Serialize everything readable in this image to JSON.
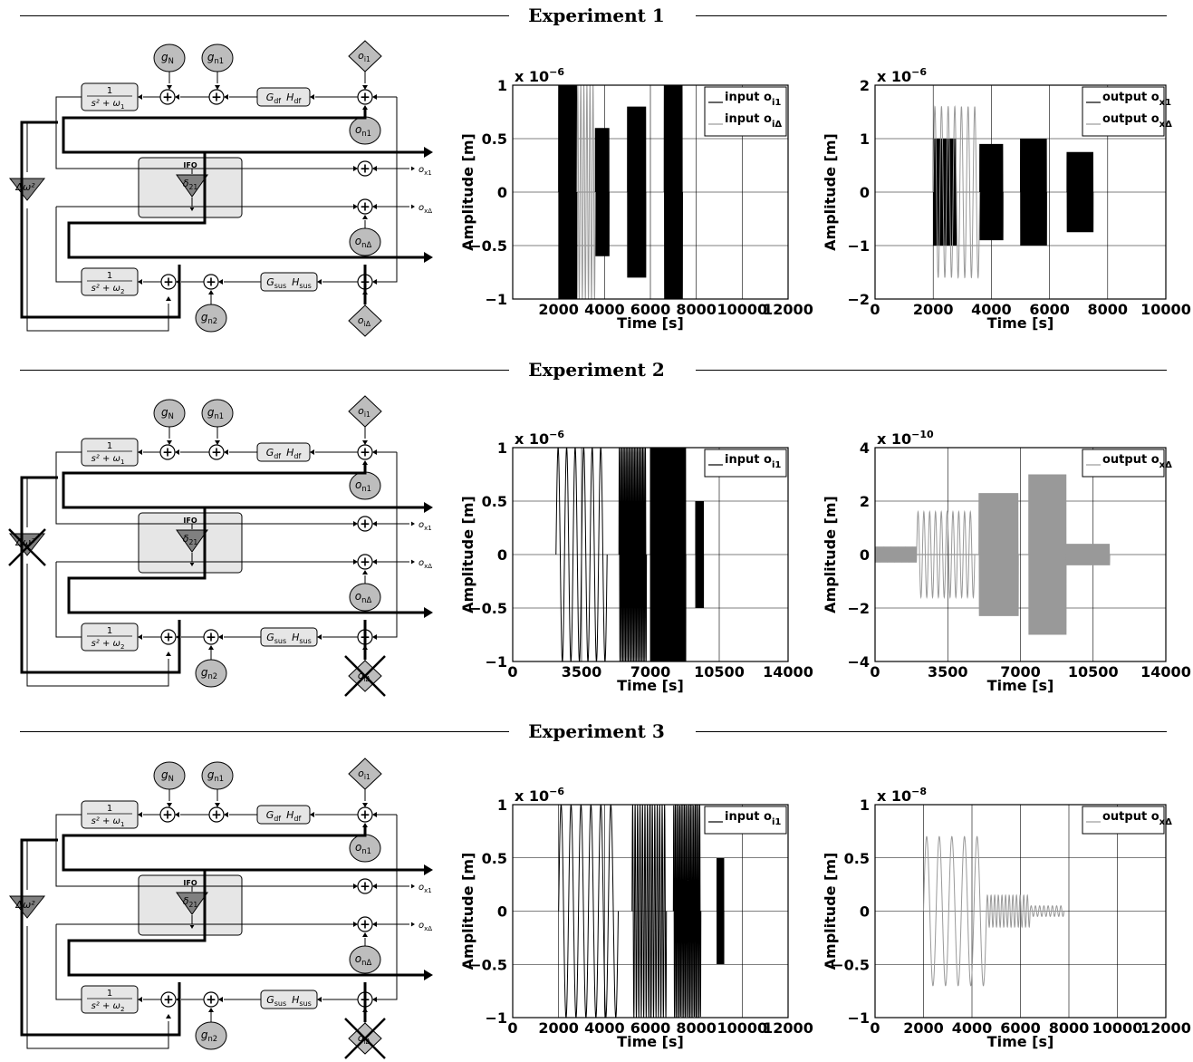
{
  "experiments": [
    {
      "title": "Experiment 1",
      "diagram": {
        "removed_delta_omega": false,
        "removed_oi_delta": false
      },
      "charts": [
        {
          "type": "line",
          "exponent_prefix": "x 10",
          "exponent": "−6",
          "ylabel": "Amplitude  [m]",
          "xlabel": "Time  [s]",
          "xlim": [
            0,
            12000
          ],
          "ylim": [
            -1,
            1
          ],
          "xticks": [
            2000,
            4000,
            6000,
            8000,
            10000,
            12000
          ],
          "xtick_labels": [
            "2000",
            "4000",
            "6000",
            "8000",
            "10000",
            "12000"
          ],
          "yticks": [
            -1,
            -0.5,
            0,
            0.5,
            1
          ],
          "ytick_labels": [
            "−1",
            "−0.5",
            "0",
            "0.5",
            "1"
          ],
          "legend": [
            {
              "label": "input o",
              "sub": "i1",
              "color": "#000000"
            },
            {
              "label": "input o",
              "sub": "iΔ",
              "color": "#999999"
            }
          ],
          "series": [
            {
              "color": "#000000",
              "segments": [
                [
                  2000,
                  2800,
                  1.0,
                  30
                ],
                [
                  3600,
                  4200,
                  0.6,
                  50
                ],
                [
                  5000,
                  5800,
                  0.8,
                  80
                ],
                [
                  6600,
                  7400,
                  1.0,
                  30
                ]
              ]
            },
            {
              "color": "#999999",
              "segments": [
                [
                  2800,
                  3600,
                  1.0,
                  6
                ]
              ]
            }
          ]
        },
        {
          "type": "line",
          "exponent_prefix": "x 10",
          "exponent": "−6",
          "ylabel": "Amplitude  [m]",
          "xlabel": "Time  [s]",
          "xlim": [
            0,
            10000
          ],
          "ylim": [
            -2,
            2
          ],
          "xticks": [
            0,
            2000,
            4000,
            6000,
            8000,
            10000
          ],
          "xtick_labels": [
            "0",
            "2000",
            "4000",
            "6000",
            "8000",
            "10000"
          ],
          "yticks": [
            -2,
            -1,
            0,
            1,
            2
          ],
          "ytick_labels": [
            "−2",
            "−1",
            "0",
            "1",
            "2"
          ],
          "legend": [
            {
              "label": "output o",
              "sub": "x1",
              "color": "#000000"
            },
            {
              "label": "output o",
              "sub": "xΔ",
              "color": "#999999"
            }
          ],
          "series": [
            {
              "color": "#000000",
              "segments": [
                [
                  2000,
                  2800,
                  1.0,
                  30
                ],
                [
                  3600,
                  4400,
                  0.9,
                  50
                ],
                [
                  5000,
                  5900,
                  1.0,
                  80
                ],
                [
                  6600,
                  7500,
                  0.75,
                  70
                ]
              ]
            },
            {
              "color": "#999999",
              "segments": [
                [
                  2000,
                  3600,
                  1.6,
                  7
                ]
              ]
            }
          ]
        }
      ]
    },
    {
      "title": "Experiment 2",
      "diagram": {
        "removed_delta_omega": true,
        "removed_oi_delta": true
      },
      "charts": [
        {
          "type": "line",
          "exponent_prefix": "x 10",
          "exponent": "−6",
          "ylabel": "Amplitude  [m]",
          "xlabel": "Time  [s]",
          "xlim": [
            0,
            14000
          ],
          "ylim": [
            -1,
            1
          ],
          "xticks": [
            0,
            3500,
            7000,
            10500,
            14000
          ],
          "xtick_labels": [
            "0",
            "3500",
            "7000",
            "10500",
            "14000"
          ],
          "yticks": [
            -1,
            -0.5,
            0,
            0.5,
            1
          ],
          "ytick_labels": [
            "−1",
            "−0.5",
            "0",
            "0.5",
            "1"
          ],
          "legend": [
            {
              "label": "input o",
              "sub": "i1",
              "color": "#000000"
            }
          ],
          "series": [
            {
              "color": "#000000",
              "segments": [
                [
                  2200,
                  4800,
                  1.0,
                  6
                ],
                [
                  5400,
                  6800,
                  1.0,
                  20
                ],
                [
                  7000,
                  8800,
                  1.0,
                  120
                ],
                [
                  9300,
                  9700,
                  0.5,
                  60
                ]
              ]
            }
          ]
        },
        {
          "type": "line",
          "exponent_prefix": "x 10",
          "exponent": "−10",
          "ylabel": "Amplitude  [m]",
          "xlabel": "Time  [s]",
          "xlim": [
            0,
            14000
          ],
          "ylim": [
            -4,
            4
          ],
          "xticks": [
            0,
            3500,
            7000,
            10500,
            14000
          ],
          "xtick_labels": [
            "0",
            "3500",
            "7000",
            "10500",
            "14000"
          ],
          "yticks": [
            -4,
            -2,
            0,
            2,
            4
          ],
          "ytick_labels": [
            "−4",
            "−2",
            "0",
            "2",
            "4"
          ],
          "legend": [
            {
              "label": "output o",
              "sub": "xΔ",
              "color": "#999999"
            }
          ],
          "series": [
            {
              "color": "#999999",
              "segments": [
                [
                  0,
                  2000,
                  0.3,
                  40
                ],
                [
                  2000,
                  4800,
                  1.6,
                  10
                ],
                [
                  5000,
                  6900,
                  2.3,
                  60
                ],
                [
                  7400,
                  9200,
                  3.0,
                  150
                ],
                [
                  9200,
                  11300,
                  0.4,
                  60
                ]
              ]
            }
          ]
        }
      ]
    },
    {
      "title": "Experiment 3",
      "diagram": {
        "removed_delta_omega": false,
        "removed_oi_delta": true
      },
      "charts": [
        {
          "type": "line",
          "exponent_prefix": "x 10",
          "exponent": "−6",
          "ylabel": "Amplitude  [m]",
          "xlabel": "Time  [s]",
          "xlim": [
            0,
            12000
          ],
          "ylim": [
            -1,
            1
          ],
          "xticks": [
            0,
            2000,
            4000,
            6000,
            8000,
            10000,
            12000
          ],
          "xtick_labels": [
            "0",
            "2000",
            "4000",
            "6000",
            "8000",
            "10000",
            "12000"
          ],
          "yticks": [
            -1,
            -0.5,
            0,
            0.5,
            1
          ],
          "ytick_labels": [
            "−1",
            "−0.5",
            "0",
            "0.5",
            "1"
          ],
          "legend": [
            {
              "label": "input o",
              "sub": "i1",
              "color": "#000000"
            }
          ],
          "series": [
            {
              "color": "#000000",
              "segments": [
                [
                  2000,
                  4600,
                  1.0,
                  6
                ],
                [
                  5200,
                  6700,
                  1.0,
                  14
                ],
                [
                  7000,
                  8200,
                  1.0,
                  18
                ],
                [
                  8900,
                  9200,
                  0.5,
                  50
                ]
              ]
            }
          ]
        },
        {
          "type": "line",
          "exponent_prefix": "x 10",
          "exponent": "−8",
          "ylabel": "Amplitude  [m]",
          "xlabel": "Time  [s]",
          "xlim": [
            0,
            12000
          ],
          "ylim": [
            -1,
            1
          ],
          "xticks": [
            0,
            2000,
            4000,
            6000,
            8000,
            10000,
            12000
          ],
          "xtick_labels": [
            "0",
            "2000",
            "4000",
            "6000",
            "8000",
            "10000",
            "12000"
          ],
          "yticks": [
            -1,
            -0.5,
            0,
            0.5,
            1
          ],
          "ytick_labels": [
            "−1",
            "−0.5",
            "0",
            "0.5",
            "1"
          ],
          "legend": [
            {
              "label": "output o",
              "sub": "xΔ",
              "color": "#999999"
            }
          ],
          "series": [
            {
              "color": "#999999",
              "segments": [
                [
                  2000,
                  4600,
                  0.7,
                  5
                ],
                [
                  4600,
                  6400,
                  0.15,
                  12
                ],
                [
                  6400,
                  7800,
                  0.05,
                  8
                ]
              ]
            }
          ]
        }
      ]
    }
  ],
  "diagram_labels": {
    "gN": "g",
    "gN_sub": "N",
    "gn1": "g",
    "gn1_sub": "n1",
    "gn2": "g",
    "gn2_sub": "n2",
    "oi1": "o",
    "oi1_sub": "i1",
    "oiD": "o",
    "oiD_sub": "iΔ",
    "on1": "o",
    "on1_sub": "n1",
    "onD": "o",
    "onD_sub": "nΔ",
    "ox1": "o",
    "ox1_sub": "x1",
    "oxD": "o",
    "oxD_sub": "xΔ",
    "gdf": "G",
    "gdf_sub": "df",
    "hdf": "H",
    "hdf_sub": "df",
    "gsus": "G",
    "gsus_sub": "sus",
    "hsus": "H",
    "hsus_sub": "sus",
    "tf1_num": "1",
    "tf1_den": "s² + ω",
    "tf1_den_sub": "1",
    "tf2_num": "1",
    "tf2_den": "s² + ω",
    "tf2_den_sub": "2",
    "ifo": "IFO",
    "delta": "δ",
    "delta_sub": "21",
    "delta_omega": "Δω²",
    "plus": "+"
  }
}
